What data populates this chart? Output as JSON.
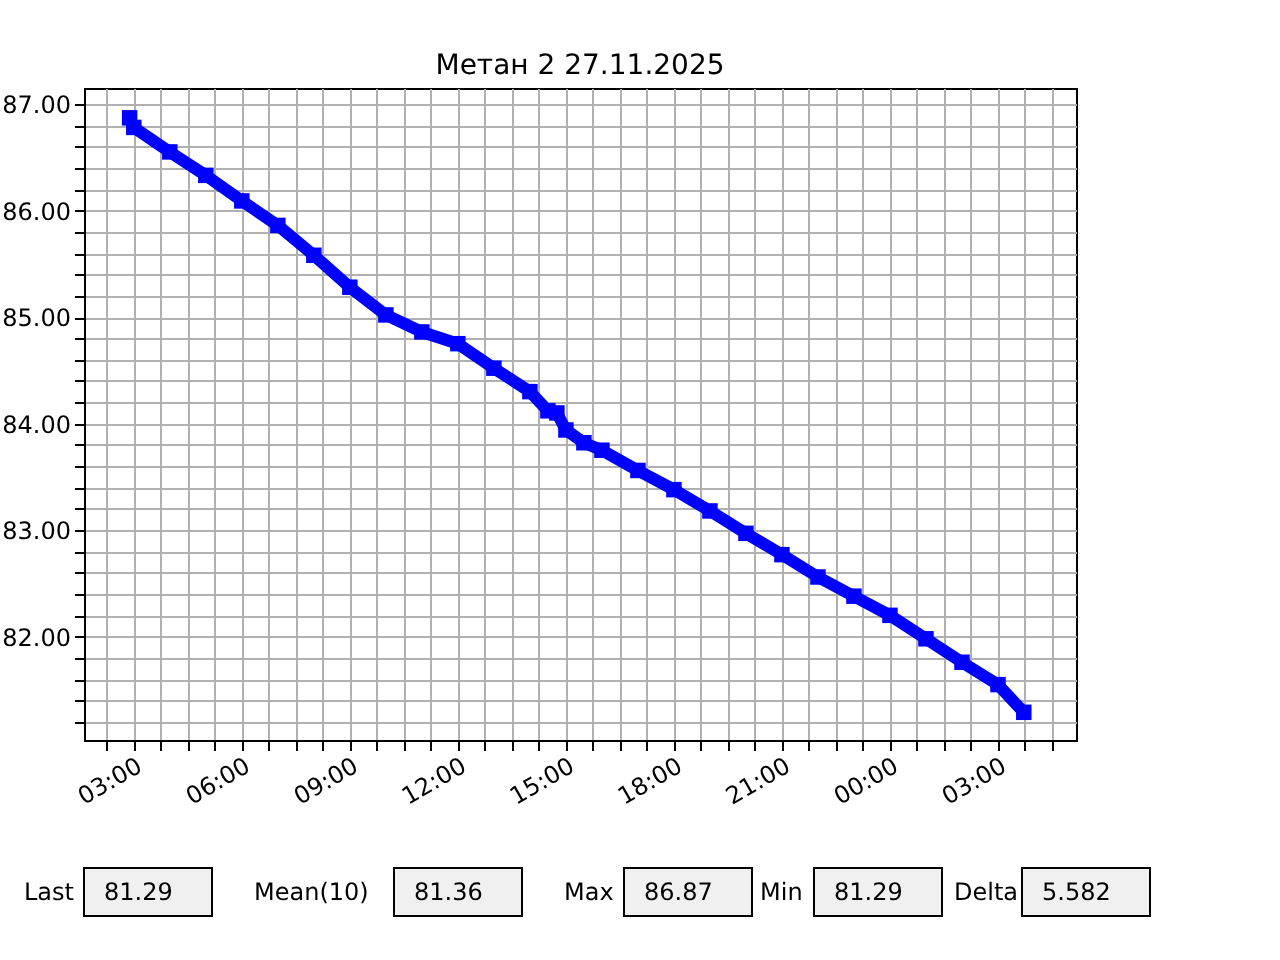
{
  "chart_data": {
    "type": "line",
    "title": "Метан 2 27.11.2025",
    "series": [
      {
        "color": "#0000ff",
        "x": [
          "2025-11-27T02:53",
          "2025-11-27T03:00",
          "2025-11-27T04:00",
          "2025-11-27T05:00",
          "2025-11-27T06:00",
          "2025-11-27T07:00",
          "2025-11-27T08:00",
          "2025-11-27T09:00",
          "2025-11-27T10:00",
          "2025-11-27T11:00",
          "2025-11-27T12:00",
          "2025-11-27T13:00",
          "2025-11-27T14:00",
          "2025-11-27T14:30",
          "2025-11-27T14:45",
          "2025-11-27T15:00",
          "2025-11-27T15:30",
          "2025-11-27T16:00",
          "2025-11-27T17:00",
          "2025-11-27T18:00",
          "2025-11-27T19:00",
          "2025-11-27T20:00",
          "2025-11-27T21:00",
          "2025-11-27T22:00",
          "2025-11-27T23:00",
          "2025-11-28T00:00",
          "2025-11-28T01:00",
          "2025-11-28T02:00",
          "2025-11-28T03:00",
          "2025-11-28T03:43"
        ],
        "values": [
          86.87,
          86.78,
          86.55,
          86.33,
          86.09,
          85.86,
          85.58,
          85.28,
          85.02,
          84.86,
          84.75,
          84.52,
          84.3,
          84.12,
          84.1,
          83.94,
          83.82,
          83.75,
          83.56,
          83.38,
          83.18,
          82.97,
          82.77,
          82.56,
          82.38,
          82.2,
          81.98,
          81.76,
          81.55,
          81.29
        ]
      }
    ],
    "marker": "square",
    "line_style": "solid",
    "grid": true,
    "xlim": [
      "2025-11-27T01:37",
      "2025-11-28T05:10"
    ],
    "ylim": [
      81.03,
      87.15
    ],
    "xticks": [
      {
        "value": "2025-11-27T02:15",
        "label": null
      },
      {
        "value": "2025-11-27T03:00",
        "label": "03:00"
      },
      {
        "value": "2025-11-27T03:45",
        "label": null
      },
      {
        "value": "2025-11-27T04:30",
        "label": null
      },
      {
        "value": "2025-11-27T05:15",
        "label": null
      },
      {
        "value": "2025-11-27T06:00",
        "label": "06:00"
      },
      {
        "value": "2025-11-27T06:45",
        "label": null
      },
      {
        "value": "2025-11-27T07:30",
        "label": null
      },
      {
        "value": "2025-11-27T08:15",
        "label": null
      },
      {
        "value": "2025-11-27T09:00",
        "label": "09:00"
      },
      {
        "value": "2025-11-27T09:45",
        "label": null
      },
      {
        "value": "2025-11-27T10:30",
        "label": null
      },
      {
        "value": "2025-11-27T11:15",
        "label": null
      },
      {
        "value": "2025-11-27T12:00",
        "label": "12:00"
      },
      {
        "value": "2025-11-27T12:45",
        "label": null
      },
      {
        "value": "2025-11-27T13:30",
        "label": null
      },
      {
        "value": "2025-11-27T14:15",
        "label": null
      },
      {
        "value": "2025-11-27T15:00",
        "label": "15:00"
      },
      {
        "value": "2025-11-27T15:45",
        "label": null
      },
      {
        "value": "2025-11-27T16:30",
        "label": null
      },
      {
        "value": "2025-11-27T17:15",
        "label": null
      },
      {
        "value": "2025-11-27T18:00",
        "label": "18:00"
      },
      {
        "value": "2025-11-27T18:45",
        "label": null
      },
      {
        "value": "2025-11-27T19:30",
        "label": null
      },
      {
        "value": "2025-11-27T20:15",
        "label": null
      },
      {
        "value": "2025-11-27T21:00",
        "label": "21:00"
      },
      {
        "value": "2025-11-27T21:45",
        "label": null
      },
      {
        "value": "2025-11-27T22:30",
        "label": null
      },
      {
        "value": "2025-11-27T23:15",
        "label": null
      },
      {
        "value": "2025-11-28T00:00",
        "label": "00:00"
      },
      {
        "value": "2025-11-28T00:45",
        "label": null
      },
      {
        "value": "2025-11-28T01:30",
        "label": null
      },
      {
        "value": "2025-11-28T02:15",
        "label": null
      },
      {
        "value": "2025-11-28T03:00",
        "label": "03:00"
      },
      {
        "value": "2025-11-28T03:45",
        "label": null
      },
      {
        "value": "2025-11-28T04:30",
        "label": null
      }
    ],
    "yticks": [
      {
        "value": 81.2,
        "label": null
      },
      {
        "value": 81.4,
        "label": null
      },
      {
        "value": 81.6,
        "label": null
      },
      {
        "value": 81.8,
        "label": null
      },
      {
        "value": 82,
        "label": "82.00"
      },
      {
        "value": 82.2,
        "label": null
      },
      {
        "value": 82.4,
        "label": null
      },
      {
        "value": 82.6,
        "label": null
      },
      {
        "value": 82.8,
        "label": null
      },
      {
        "value": 83,
        "label": "83.00"
      },
      {
        "value": 83.2,
        "label": null
      },
      {
        "value": 83.4,
        "label": null
      },
      {
        "value": 83.6,
        "label": null
      },
      {
        "value": 83.8,
        "label": null
      },
      {
        "value": 84,
        "label": "84.00"
      },
      {
        "value": 84.2,
        "label": null
      },
      {
        "value": 84.4,
        "label": null
      },
      {
        "value": 84.6,
        "label": null
      },
      {
        "value": 84.8,
        "label": null
      },
      {
        "value": 85,
        "label": "85.00"
      },
      {
        "value": 85.2,
        "label": null
      },
      {
        "value": 85.4,
        "label": null
      },
      {
        "value": 85.6,
        "label": null
      },
      {
        "value": 85.8,
        "label": null
      },
      {
        "value": 86,
        "label": "86.00"
      },
      {
        "value": 86.2,
        "label": null
      },
      {
        "value": 86.4,
        "label": null
      },
      {
        "value": 86.6,
        "label": null
      },
      {
        "value": 86.8,
        "label": null
      },
      {
        "value": 87,
        "label": "87.00"
      }
    ],
    "annotations": [
      "Last",
      "81.29",
      "Mean(10)",
      "81.36",
      "Max",
      "86.87",
      "Min",
      "81.29",
      "Delta",
      "5.582"
    ]
  }
}
